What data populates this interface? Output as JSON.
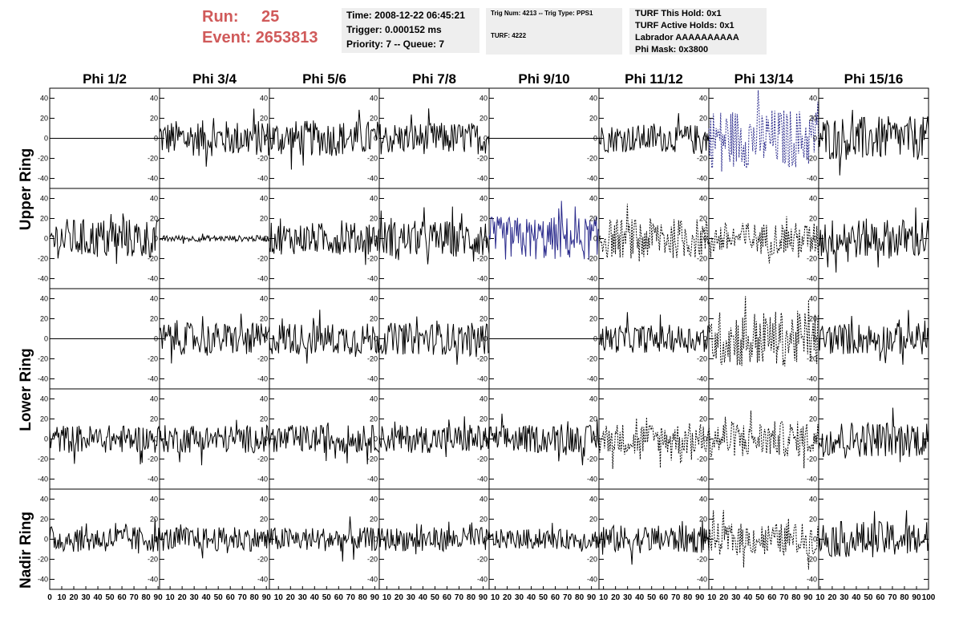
{
  "header": {
    "run_label": "Run:",
    "run_value": "25",
    "event_label": "Event:",
    "event_value": "2653813"
  },
  "info_box_1": {
    "time": "Time: 2008-12-22 06:45:21",
    "trigger": "Trigger: 0.000152 ms",
    "priority": "Priority: 7 -- Queue: 7"
  },
  "info_box_2": {
    "trig": "Trig Num: 4213 -- Trig Type: PPS1",
    "turf": "TURF: 4222"
  },
  "info_box_3": {
    "hold": "TURF This Hold: 0x1",
    "active": "TURF Active Holds: 0x1",
    "labrador": "Labrador AAAAAAAAAA",
    "mask": "Phi Mask: 0x3800"
  },
  "ring_labels": {
    "upper": "Upper Ring",
    "lower": "Lower Ring",
    "nadir": "Nadir Ring"
  },
  "colors": {
    "run_text": "#d05a5a",
    "box_bg": "#eeeeee",
    "trace_default": "#000000",
    "trace_triggered": "#2b2b8c"
  },
  "chart_data": {
    "type": "line",
    "columns": [
      "Phi 1/2",
      "Phi 3/4",
      "Phi 5/6",
      "Phi 7/8",
      "Phi 9/10",
      "Phi 11/12",
      "Phi 13/14",
      "Phi 15/16"
    ],
    "rows": 5,
    "xlim": [
      0,
      100
    ],
    "ylim": [
      -50,
      50
    ],
    "y_ticks": [
      -40,
      -20,
      0,
      20,
      40
    ],
    "x_tick_labels": [
      "0",
      "10",
      "20",
      "30",
      "40",
      "50",
      "60",
      "70",
      "80",
      "90",
      "10",
      "20",
      "30",
      "40",
      "50",
      "60",
      "70",
      "80",
      "90",
      "10",
      "20",
      "30",
      "40",
      "50",
      "60",
      "70",
      "80",
      "90",
      "10",
      "20",
      "30",
      "40",
      "50",
      "60",
      "70",
      "80",
      "90",
      "10",
      "20",
      "30",
      "40",
      "50",
      "60",
      "70",
      "80",
      "90",
      "10",
      "20",
      "30",
      "40",
      "50",
      "60",
      "70",
      "80",
      "90",
      "10",
      "20",
      "30",
      "40",
      "50",
      "60",
      "70",
      "80",
      "90",
      "10",
      "20",
      "30",
      "40",
      "50",
      "60",
      "70",
      "80",
      "90",
      "100"
    ],
    "panel_amplitude": [
      [
        0,
        18,
        18,
        16,
        0,
        14,
        30,
        22
      ],
      [
        20,
        3,
        16,
        18,
        22,
        20,
        16,
        20
      ],
      [
        0,
        16,
        16,
        16,
        0,
        14,
        28,
        16
      ],
      [
        14,
        14,
        14,
        14,
        14,
        16,
        18,
        18
      ],
      [
        13,
        12,
        12,
        12,
        10,
        14,
        16,
        18
      ]
    ],
    "panel_style": [
      [
        "solid",
        "solid",
        "solid",
        "solid",
        "solid",
        "solid",
        "dashed-blue",
        "solid"
      ],
      [
        "solid",
        "solid",
        "solid",
        "solid",
        "solid-blue",
        "dashed",
        "dashed",
        "solid"
      ],
      [
        "solid",
        "solid",
        "solid",
        "solid",
        "solid",
        "solid",
        "dashed",
        "solid"
      ],
      [
        "solid",
        "solid",
        "solid",
        "solid",
        "solid",
        "dashed",
        "dashed",
        "solid"
      ],
      [
        "solid",
        "solid",
        "solid",
        "solid",
        "solid",
        "solid",
        "dashed",
        "solid"
      ]
    ]
  }
}
